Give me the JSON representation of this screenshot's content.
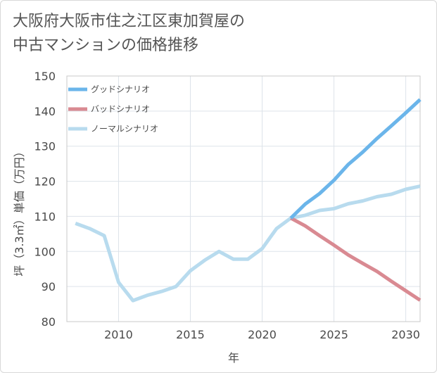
{
  "title_lines": [
    "大阪府大阪市住之江区東加賀屋の",
    "中古マンションの価格推移"
  ],
  "chart_data": {
    "type": "line",
    "xlabel": "年",
    "ylabel": "坪（3.3㎡）単価（万円）",
    "xlim": [
      2006.4,
      2031
    ],
    "ylim": [
      80,
      150
    ],
    "xticks": [
      2010,
      2015,
      2020,
      2025,
      2030
    ],
    "yticks": [
      80,
      90,
      100,
      110,
      120,
      130,
      140,
      150
    ],
    "grid": true,
    "legend_position": "top-left",
    "series": [
      {
        "name": "グッドシナリオ",
        "color": "#6bb5ea",
        "x": [
          2022,
          2023,
          2024,
          2025,
          2026,
          2027,
          2028,
          2029,
          2030,
          2031
        ],
        "y": [
          109.5,
          113.5,
          116.5,
          120.3,
          124.8,
          128.3,
          132.2,
          135.8,
          139.5,
          143.3
        ]
      },
      {
        "name": "バッドシナリオ",
        "color": "#d98a92",
        "x": [
          2022,
          2023,
          2024,
          2025,
          2026,
          2027,
          2028,
          2029,
          2030,
          2031
        ],
        "y": [
          109.5,
          107.3,
          104.5,
          101.8,
          99.0,
          96.6,
          94.3,
          91.5,
          88.8,
          86.1
        ]
      },
      {
        "name": "ノーマルシナリオ",
        "color": "#b8dbee",
        "x": [
          2007,
          2008,
          2009,
          2010,
          2011,
          2012,
          2013,
          2014,
          2015,
          2016,
          2017,
          2018,
          2019,
          2020,
          2021,
          2022,
          2023,
          2024,
          2025,
          2026,
          2027,
          2028,
          2029,
          2030,
          2031
        ],
        "y": [
          108.0,
          106.5,
          104.5,
          91.2,
          86.0,
          87.5,
          88.6,
          90.0,
          94.5,
          97.5,
          100.0,
          97.8,
          97.8,
          100.8,
          106.5,
          109.5,
          110.3,
          111.7,
          112.2,
          113.6,
          114.4,
          115.6,
          116.3,
          117.7,
          118.6
        ]
      }
    ]
  }
}
